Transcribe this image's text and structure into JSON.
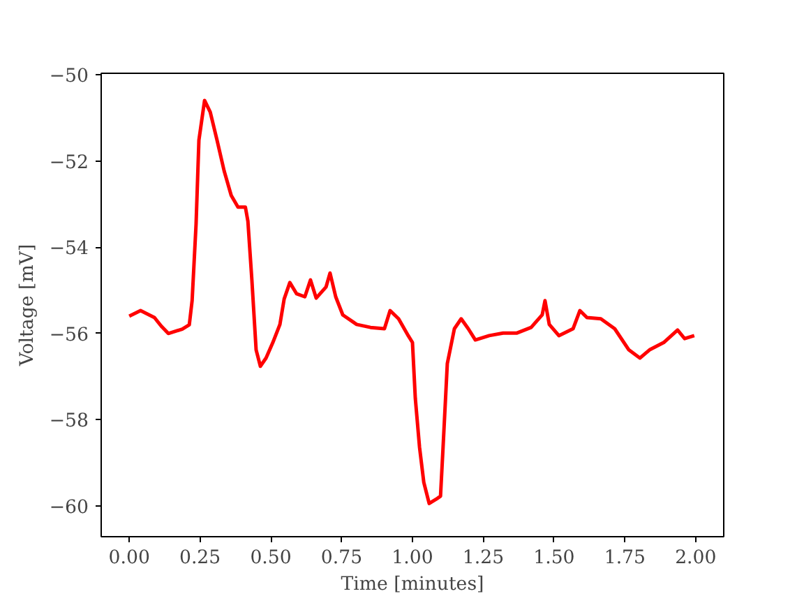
{
  "chart_data": {
    "type": "line",
    "xlabel": "Time [minutes]",
    "ylabel": "Voltage [mV]",
    "xlim": [
      -0.099,
      2.099
    ],
    "ylim": [
      -60.71,
      -49.97
    ],
    "xticks": [
      {
        "value": 0,
        "label": "0.00"
      },
      {
        "value": 0.25,
        "label": "0.25"
      },
      {
        "value": 0.5,
        "label": "0.50"
      },
      {
        "value": 0.75,
        "label": "0.75"
      },
      {
        "value": 1,
        "label": "1.00"
      },
      {
        "value": 1.25,
        "label": "1.25"
      },
      {
        "value": 1.5,
        "label": "1.50"
      },
      {
        "value": 1.75,
        "label": "1.75"
      },
      {
        "value": 2,
        "label": "2.00"
      }
    ],
    "yticks": [
      {
        "value": -60,
        "label": "−60"
      },
      {
        "value": -58,
        "label": "−58"
      },
      {
        "value": -56,
        "label": "−56"
      },
      {
        "value": -54,
        "label": "−54"
      },
      {
        "value": -52,
        "label": "−52"
      },
      {
        "value": -50,
        "label": "−50"
      }
    ],
    "grid": false,
    "marker": "none",
    "line_style": "solid",
    "series": [
      {
        "color": "#ff0000",
        "x": [
          0.0,
          0.04,
          0.089,
          0.113,
          0.138,
          0.187,
          0.212,
          0.222,
          0.236,
          0.246,
          0.266,
          0.286,
          0.31,
          0.335,
          0.36,
          0.384,
          0.41,
          0.419,
          0.433,
          0.448,
          0.463,
          0.483,
          0.507,
          0.532,
          0.547,
          0.567,
          0.591,
          0.62,
          0.64,
          0.66,
          0.695,
          0.709,
          0.729,
          0.754,
          0.803,
          0.852,
          0.901,
          0.921,
          0.951,
          0.985,
          1.0,
          1.01,
          1.025,
          1.04,
          1.059,
          1.084,
          1.099,
          1.108,
          1.123,
          1.148,
          1.172,
          1.197,
          1.222,
          1.271,
          1.32,
          1.369,
          1.419,
          1.458,
          1.468,
          1.483,
          1.517,
          1.567,
          1.591,
          1.616,
          1.665,
          1.714,
          1.764,
          1.803,
          1.837,
          1.887,
          1.936,
          1.961,
          1.995
        ],
        "values": [
          -55.6,
          -55.47,
          -55.63,
          -55.83,
          -56.0,
          -55.9,
          -55.8,
          -55.24,
          -53.46,
          -51.52,
          -50.6,
          -50.87,
          -51.52,
          -52.23,
          -52.8,
          -53.07,
          -53.07,
          -53.4,
          -54.76,
          -56.38,
          -56.76,
          -56.57,
          -56.21,
          -55.79,
          -55.2,
          -54.82,
          -55.08,
          -55.15,
          -54.76,
          -55.18,
          -54.92,
          -54.6,
          -55.15,
          -55.57,
          -55.79,
          -55.86,
          -55.89,
          -55.47,
          -55.66,
          -56.05,
          -56.21,
          -57.5,
          -58.64,
          -59.45,
          -59.94,
          -59.84,
          -59.77,
          -58.64,
          -56.7,
          -55.89,
          -55.66,
          -55.89,
          -56.15,
          -56.05,
          -55.99,
          -55.99,
          -55.86,
          -55.57,
          -55.24,
          -55.79,
          -56.05,
          -55.89,
          -55.47,
          -55.63,
          -55.66,
          -55.89,
          -56.38,
          -56.57,
          -56.38,
          -56.21,
          -55.92,
          -56.12,
          -56.05
        ]
      }
    ]
  }
}
